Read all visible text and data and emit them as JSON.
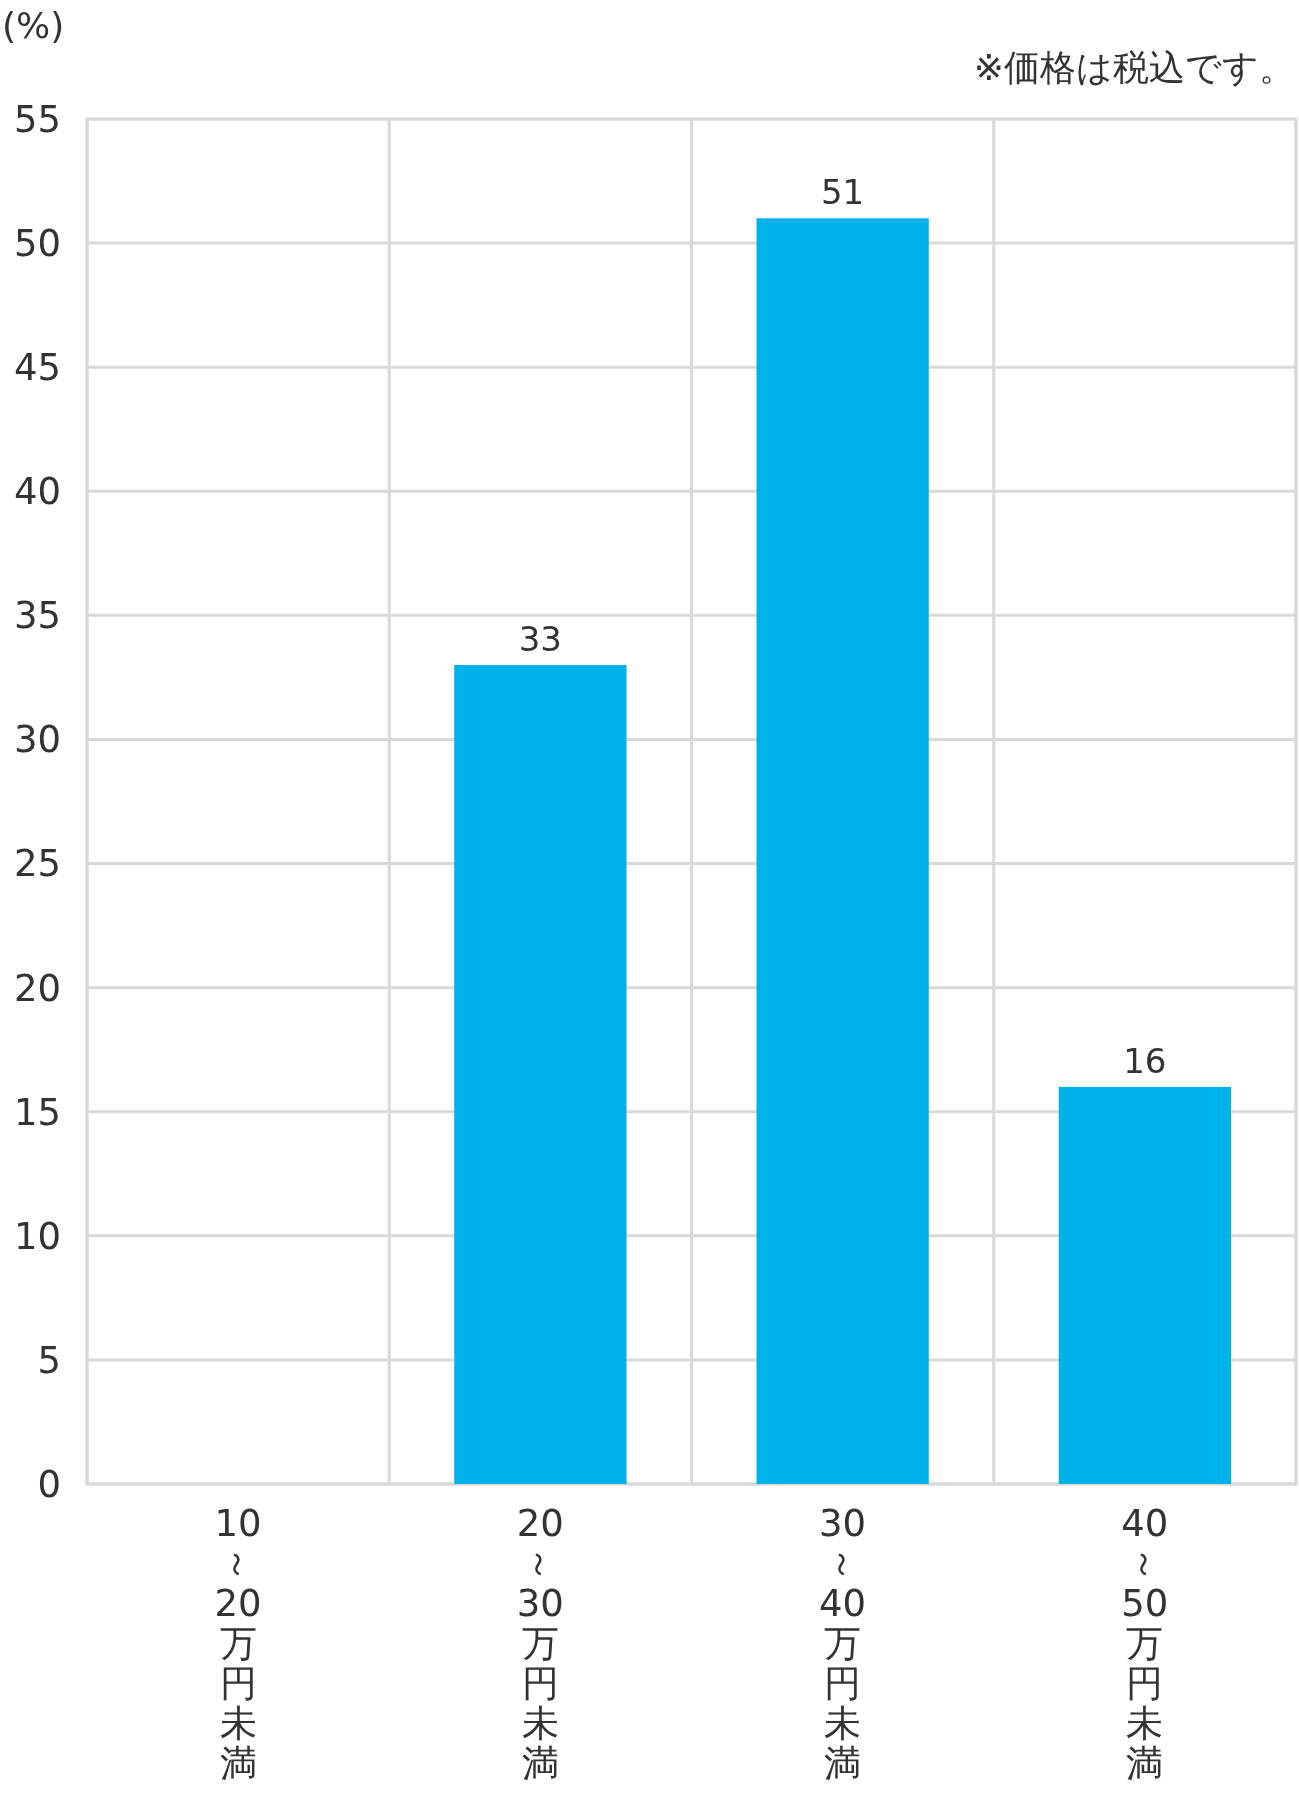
{
  "chart_data": {
    "type": "bar",
    "ylabel": "(%)",
    "annotations": [
      "※価格は税込です。"
    ],
    "categories": [
      "10～20万円未満",
      "20～30万円未満",
      "30～40万円未満",
      "40～50万円未満"
    ],
    "values": [
      null,
      33,
      51,
      16
    ],
    "value_labels": [
      null,
      "33",
      "51",
      "16"
    ],
    "color": "#00b2ea",
    "ylim": [
      0,
      55
    ],
    "yticks": [
      0,
      5,
      10,
      15,
      20,
      25,
      30,
      35,
      40,
      45,
      50,
      55
    ],
    "grid": true
  }
}
